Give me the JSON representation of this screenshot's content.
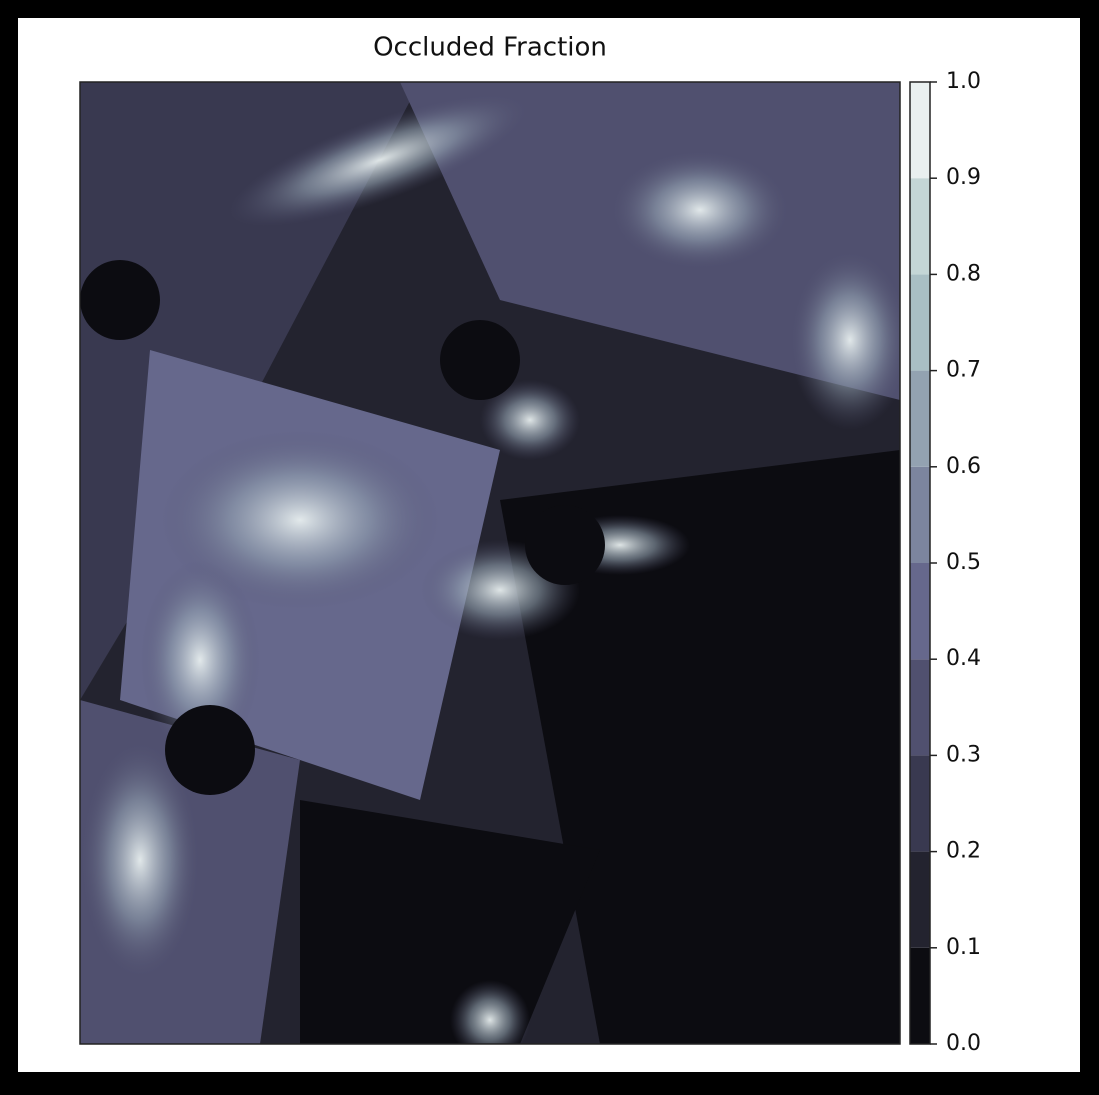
{
  "chart_data": {
    "type": "image",
    "title": "Occluded Fraction",
    "colorbar": {
      "lim": [
        0,
        1
      ],
      "ticks": [
        {
          "value": 0,
          "label": "0.0"
        },
        0.1,
        0.2,
        0.3,
        0.4,
        0.5,
        0.6,
        0.7,
        0.8,
        0.9,
        {
          "value": 1,
          "label": "1.0"
        }
      ],
      "colors": [
        "#0c0c11",
        "#23232f",
        "#393950",
        "#50506f",
        "#66688c",
        "#7c859e",
        "#93a2b1",
        "#a9bfc4",
        "#c4d6d6",
        "#e9f0f0"
      ]
    }
  }
}
